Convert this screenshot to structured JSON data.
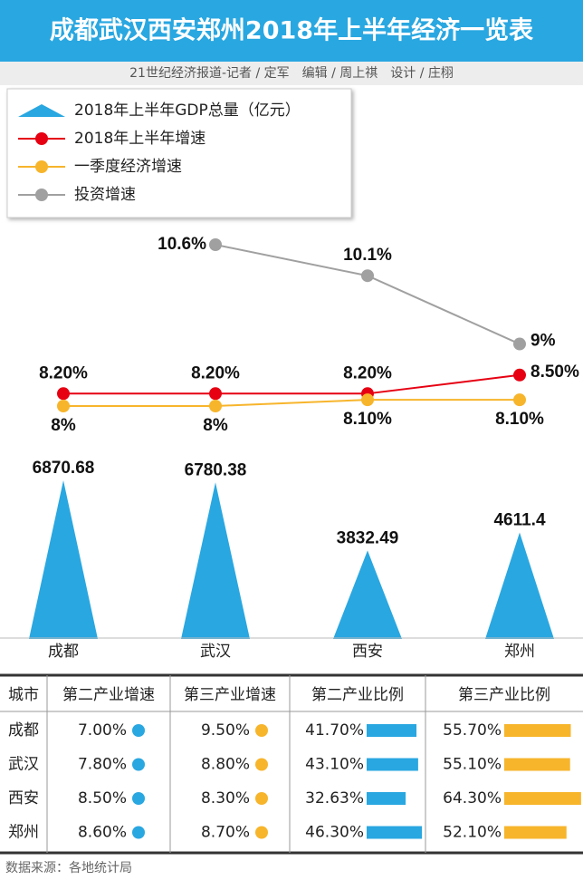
{
  "header": {
    "title": "成都武汉西安郑州2018年上半年经济一览表",
    "byline": "21世纪经济报道-记者 / 定军　编辑 / 周上祺　设计 / 庄栩"
  },
  "chart_data": {
    "type": "line",
    "categories": [
      "成都",
      "武汉",
      "西安",
      "郑州"
    ],
    "series": [
      {
        "name": "2018年上半年GDP总量（亿元）",
        "type": "triangle",
        "color": "#29a7e1",
        "values": [
          6870.68,
          6780.38,
          3832.49,
          4611.4
        ]
      },
      {
        "name": "2018年上半年增速",
        "color": "#e60012",
        "values": [
          8.2,
          8.2,
          8.2,
          8.5
        ],
        "value_labels": [
          "8.20%",
          "8.20%",
          "8.20%",
          "8.50%"
        ]
      },
      {
        "name": "一季度经济增速",
        "color": "#f7b52c",
        "values": [
          8,
          8,
          8.1,
          8.1
        ],
        "value_labels": [
          "8%",
          "8%",
          "8.10%",
          "8.10%"
        ]
      },
      {
        "name": "投资增速",
        "color": "#a0a0a0",
        "values": [
          null,
          10.6,
          10.1,
          9
        ],
        "value_labels": [
          null,
          "10.6%",
          "10.1%",
          "9%"
        ]
      }
    ]
  },
  "table": {
    "columns": [
      "城市",
      "第二产业增速",
      "第三产业增速",
      "第二产业比例",
      "第三产业比例"
    ],
    "rows": [
      [
        "成都",
        "7.00%",
        "9.50%",
        {
          "value": 41.7,
          "label": "41.70%"
        },
        {
          "value": 55.7,
          "label": "55.70%"
        }
      ],
      [
        "武汉",
        "7.80%",
        "8.80%",
        {
          "value": 43.1,
          "label": "43.10%"
        },
        {
          "value": 55.1,
          "label": "55.10%"
        }
      ],
      [
        "西安",
        "8.50%",
        "8.30%",
        {
          "value": 32.63,
          "label": "32.63%"
        },
        {
          "value": 64.3,
          "label": "64.30%"
        }
      ],
      [
        "郑州",
        "8.60%",
        "8.70%",
        {
          "value": 46.3,
          "label": "46.30%"
        },
        {
          "value": 52.1,
          "label": "52.10%"
        }
      ]
    ]
  },
  "source": "数据来源：各地统计局"
}
